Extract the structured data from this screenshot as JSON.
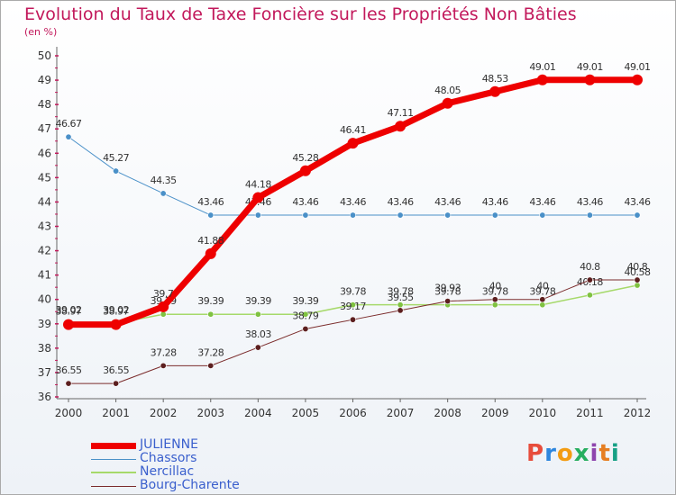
{
  "header": {
    "title": "Evolution du Taux de Taxe Foncière sur les Propriétés Non Bâties",
    "unit": "(en %)"
  },
  "logo": {
    "text": "Proxiti",
    "letters": [
      "P",
      "r",
      "o",
      "x",
      "i",
      "t",
      "i"
    ]
  },
  "chart_data": {
    "type": "line",
    "title": "Evolution du Taux de Taxe Foncière sur les Propriétés Non Bâties",
    "ylabel": "(en %)",
    "xlabel": "",
    "x": [
      "2000",
      "2001",
      "2002",
      "2003",
      "2004",
      "2005",
      "2006",
      "2007",
      "2008",
      "2009",
      "2010",
      "2011",
      "2012"
    ],
    "ylim": [
      36,
      50
    ],
    "yticks": [
      36,
      37,
      38,
      39,
      40,
      41,
      42,
      43,
      44,
      45,
      46,
      47,
      48,
      49,
      50
    ],
    "grid": false,
    "legend_position": "bottom-left",
    "series": [
      {
        "name": "Chassors",
        "color": "#4a90c8",
        "width": 1,
        "marker": "#4a90c8",
        "values": [
          46.67,
          45.27,
          44.35,
          43.46,
          43.46,
          43.46,
          43.46,
          43.46,
          43.46,
          43.46,
          43.46,
          43.46,
          43.46
        ],
        "labels": [
          "46.67",
          "45.27",
          "44.35",
          "43.46",
          "43.46",
          "43.46",
          "43.46",
          "43.46",
          "43.46",
          "43.46",
          "43.46",
          "43.46",
          "43.46"
        ]
      },
      {
        "name": "Nercillac",
        "color": "#a6d96a",
        "width": 1.5,
        "marker": "#7fc241",
        "values": [
          39.02,
          39.02,
          39.39,
          39.39,
          39.39,
          39.39,
          39.78,
          39.78,
          39.78,
          39.78,
          39.78,
          40.18,
          40.58
        ],
        "labels": [
          "39.02",
          "39.02",
          "39.39",
          "39.39",
          "39.39",
          "39.39",
          "39.78",
          "39.78",
          "39.78",
          "39.78",
          "39.78",
          "40.18",
          "40.58"
        ]
      },
      {
        "name": "Bourg-Charente",
        "color": "#7b2c2c",
        "width": 1,
        "marker": "#5c1f1f",
        "values": [
          36.55,
          36.55,
          37.28,
          37.28,
          38.03,
          38.79,
          39.17,
          39.55,
          39.93,
          40,
          40,
          40.8,
          40.8
        ],
        "labels": [
          "36.55",
          "36.55",
          "37.28",
          "37.28",
          "38.03",
          "38.79",
          "39.17",
          "39.55",
          "39.93",
          "40",
          "40",
          "40.8",
          "40.8"
        ]
      },
      {
        "name": "JULIENNE",
        "color": "#ee0000",
        "width": 7,
        "marker": "#ee0000",
        "values": [
          38.97,
          38.97,
          39.7,
          41.88,
          44.18,
          45.28,
          46.41,
          47.11,
          48.05,
          48.53,
          49.01,
          49.01,
          49.01
        ],
        "labels": [
          "38.97",
          "38.97",
          "39.7",
          "41.88",
          "44.18",
          "45.28",
          "46.41",
          "47.11",
          "48.05",
          "48.53",
          "49.01",
          "49.01",
          "49.01"
        ]
      }
    ],
    "legend": [
      {
        "name": "JULIENNE",
        "color": "#ee0000",
        "width": 7
      },
      {
        "name": "Chassors",
        "color": "#4a90c8",
        "width": 1
      },
      {
        "name": "Nercillac",
        "color": "#a6d96a",
        "width": 2
      },
      {
        "name": "Bourg-Charente",
        "color": "#7b2c2c",
        "width": 1
      }
    ]
  }
}
